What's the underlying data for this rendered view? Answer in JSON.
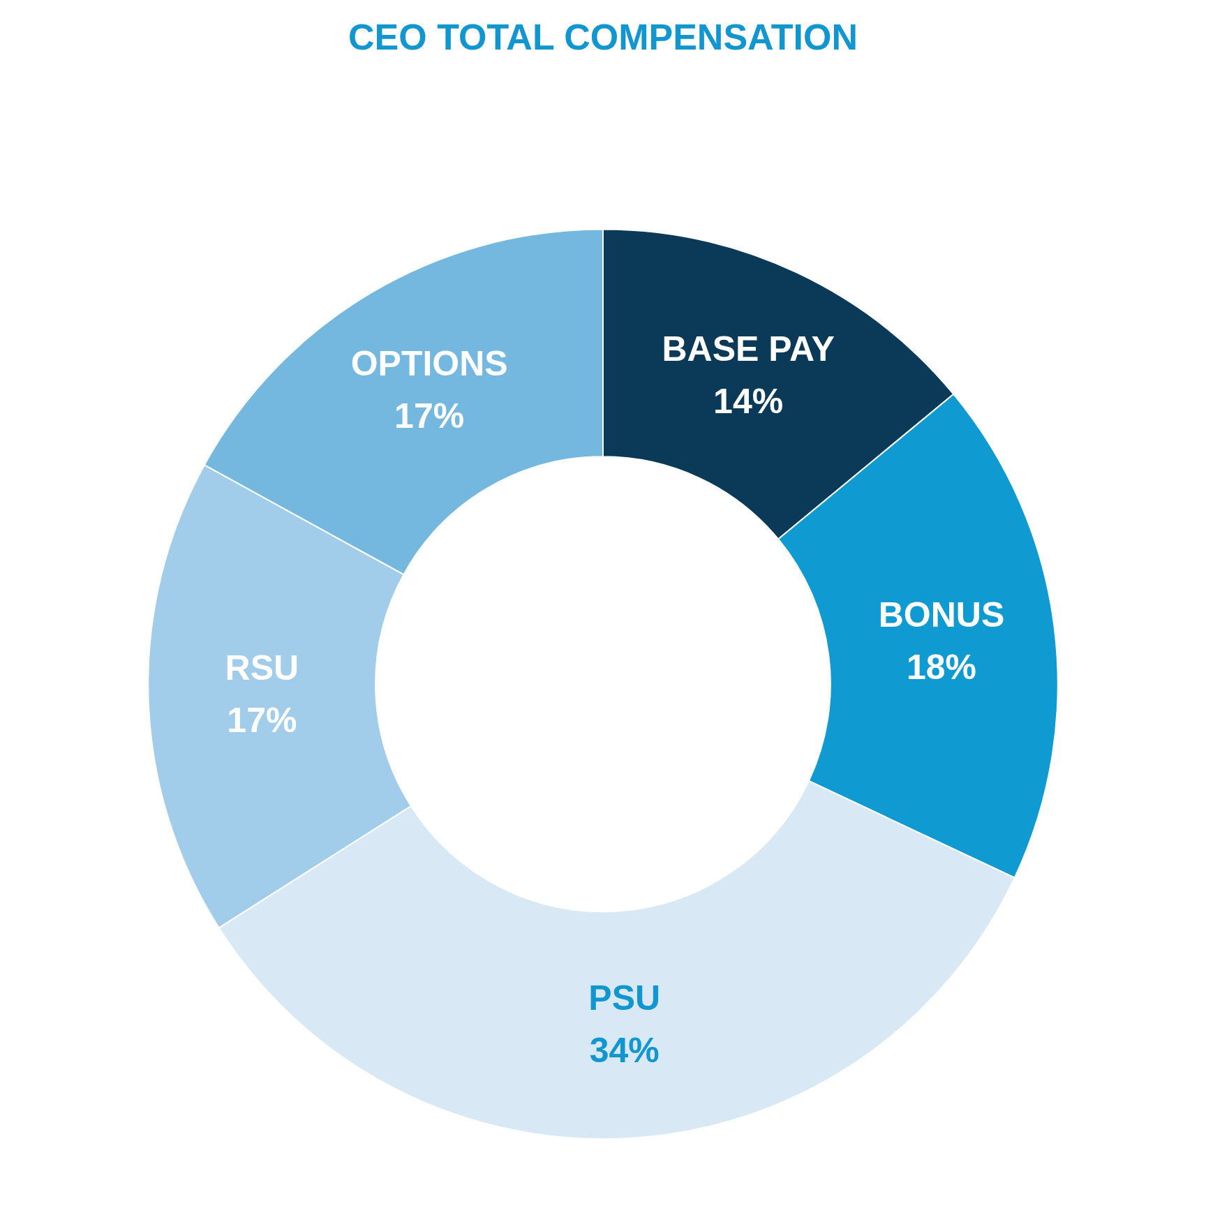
{
  "chart_data": {
    "type": "donut",
    "title": "CEO TOTAL COMPENSATION",
    "categories": [
      "BASE PAY",
      "BONUS",
      "PSU",
      "RSU",
      "OPTIONS"
    ],
    "values": [
      14,
      18,
      34,
      17,
      17
    ],
    "value_labels": [
      "14%",
      "18%",
      "34%",
      "17%",
      "17%"
    ],
    "colors": [
      "#0a3a57",
      "#0f9bd1",
      "#d8e9f5",
      "#a2cdea",
      "#74b8e0"
    ],
    "legend": false
  }
}
